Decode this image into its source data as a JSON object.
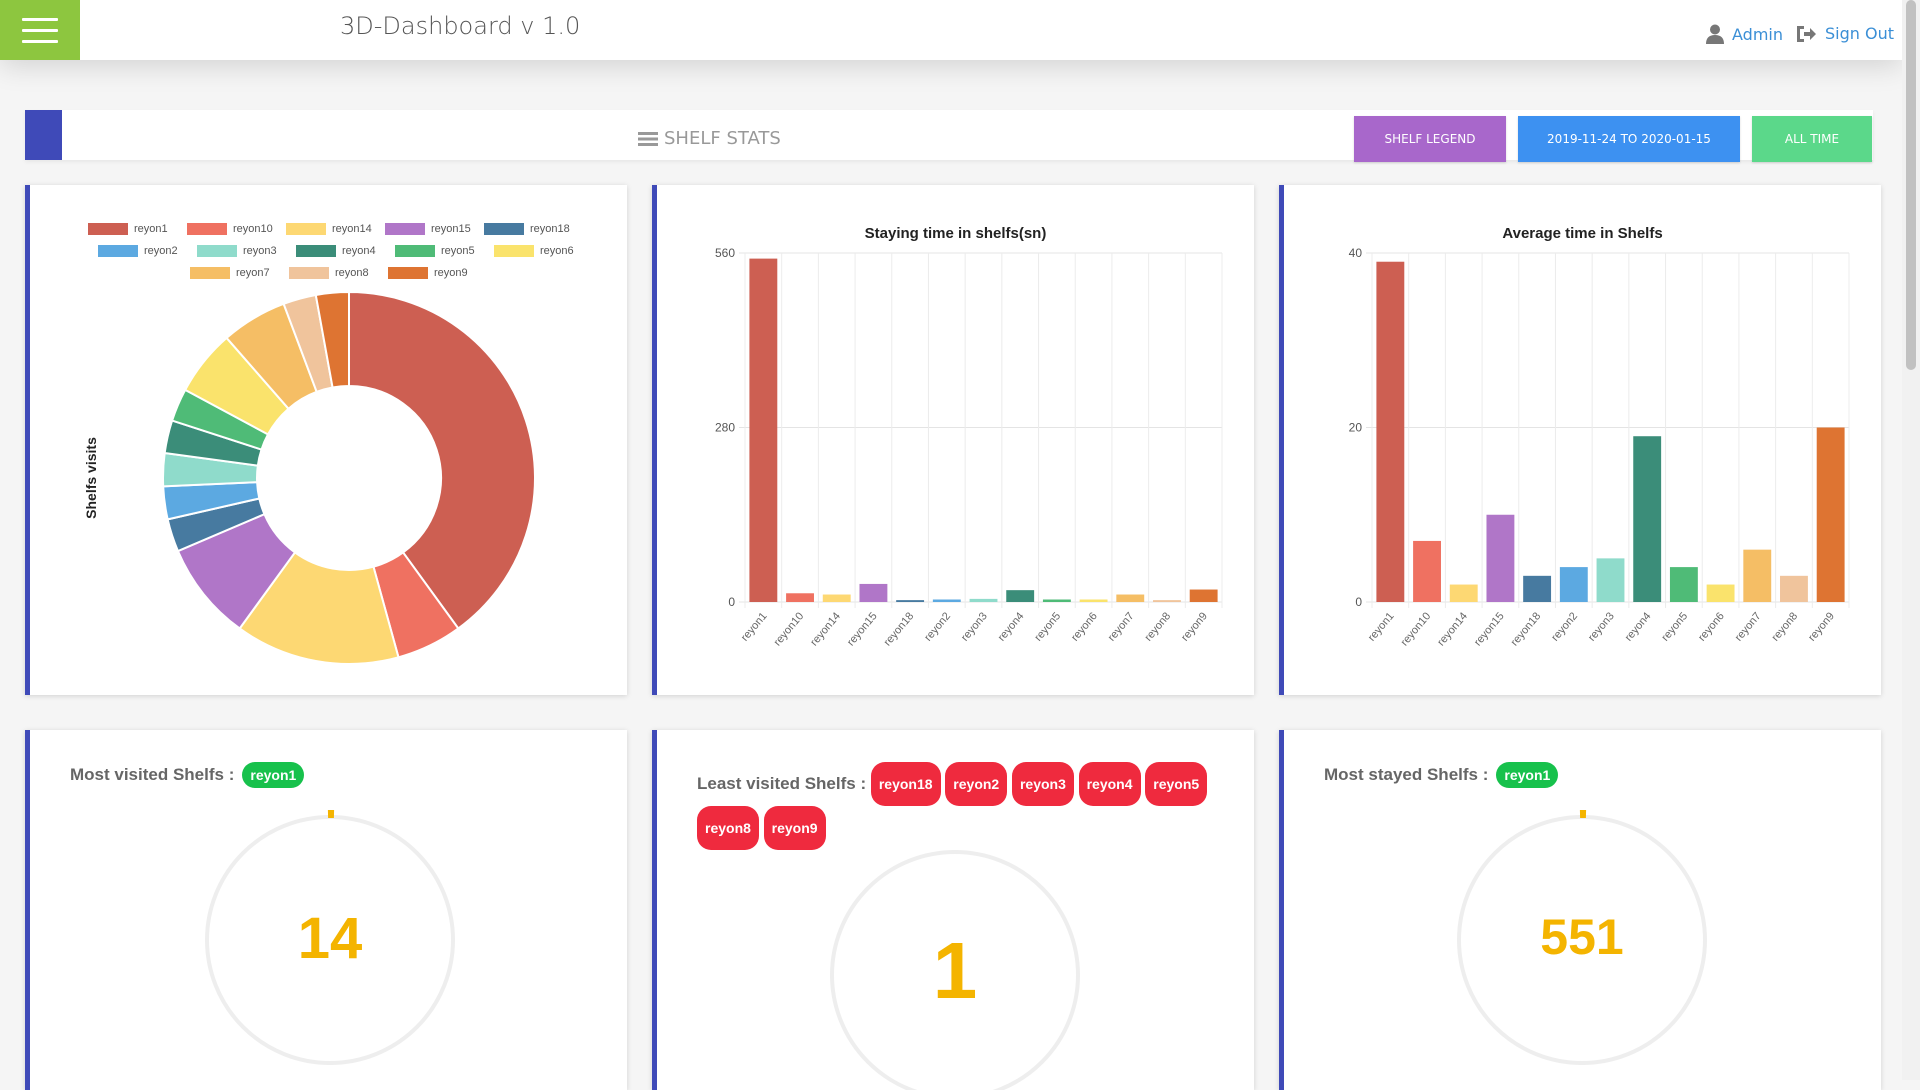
{
  "header": {
    "title": "3D-Dashboard v 1.0",
    "admin_label": "Admin",
    "signout_label": "Sign Out"
  },
  "stats_bar": {
    "title": "SHELF STATS",
    "buttons": {
      "legend": "SHELF LEGEND",
      "date_range": "2019-11-24 TO 2020-01-15",
      "all_time": "ALL TIME"
    },
    "colors": {
      "legend": "#a867cb",
      "date_range": "#3d91f1",
      "all_time": "#5bd88a",
      "accent": "#3f4ab8"
    }
  },
  "chart_data": [
    {
      "type": "pie",
      "variant": "doughnut",
      "ylabel": "Shelfs visits",
      "legend_position": "top",
      "categories": [
        "reyon1",
        "reyon10",
        "reyon14",
        "reyon15",
        "reyon18",
        "reyon2",
        "reyon3",
        "reyon4",
        "reyon5",
        "reyon6",
        "reyon7",
        "reyon8",
        "reyon9"
      ],
      "values": [
        14,
        2,
        5,
        3,
        1,
        1,
        1,
        1,
        1,
        2,
        2,
        1,
        1
      ],
      "colors": [
        "#cd5f52",
        "#ef7161",
        "#fdd873",
        "#b076c8",
        "#477aa0",
        "#5ca9e1",
        "#8fdbcb",
        "#3b8d79",
        "#4fbb77",
        "#fae36c",
        "#f5be65",
        "#f0c49c",
        "#de7432"
      ]
    },
    {
      "type": "bar",
      "title": "Staying time in shelfs(sn)",
      "ylim": [
        0,
        560
      ],
      "yticks": [
        "0",
        "280",
        "560"
      ],
      "categories": [
        "reyon1",
        "reyon10",
        "reyon14",
        "reyon15",
        "reyon18",
        "reyon2",
        "reyon3",
        "reyon4",
        "reyon5",
        "reyon6",
        "reyon7",
        "reyon8",
        "reyon9"
      ],
      "values": [
        551,
        14,
        12,
        29,
        3,
        4,
        5,
        19,
        4,
        4,
        12,
        3,
        20
      ],
      "colors": [
        "#cd5f52",
        "#ef7161",
        "#fdd873",
        "#b076c8",
        "#477aa0",
        "#5ca9e1",
        "#8fdbcb",
        "#3b8d79",
        "#4fbb77",
        "#fae36c",
        "#f5be65",
        "#f0c49c",
        "#de7432"
      ]
    },
    {
      "type": "bar",
      "title": "Average time in Shelfs",
      "ylim": [
        0,
        40
      ],
      "yticks": [
        "0",
        "20",
        "40"
      ],
      "categories": [
        "reyon1",
        "reyon10",
        "reyon14",
        "reyon15",
        "reyon18",
        "reyon2",
        "reyon3",
        "reyon4",
        "reyon5",
        "reyon6",
        "reyon7",
        "reyon8",
        "reyon9"
      ],
      "values": [
        39,
        7,
        2,
        10,
        3,
        4,
        5,
        19,
        4,
        2,
        6,
        3,
        20
      ],
      "colors": [
        "#cd5f52",
        "#ef7161",
        "#fdd873",
        "#b076c8",
        "#477aa0",
        "#5ca9e1",
        "#8fdbcb",
        "#3b8d79",
        "#4fbb77",
        "#fae36c",
        "#f5be65",
        "#f0c49c",
        "#de7432"
      ]
    }
  ],
  "stats": {
    "most_visited": {
      "label": "Most visited Shelfs :",
      "badges": [
        "reyon1"
      ],
      "value": "14"
    },
    "least_visited": {
      "label": "Least visited Shelfs :",
      "badges": [
        "reyon18",
        "reyon2",
        "reyon3",
        "reyon4",
        "reyon5",
        "reyon8",
        "reyon9"
      ],
      "value": "1"
    },
    "most_stayed": {
      "label": "Most stayed Shelfs :",
      "badges": [
        "reyon1"
      ],
      "value": "551"
    }
  }
}
